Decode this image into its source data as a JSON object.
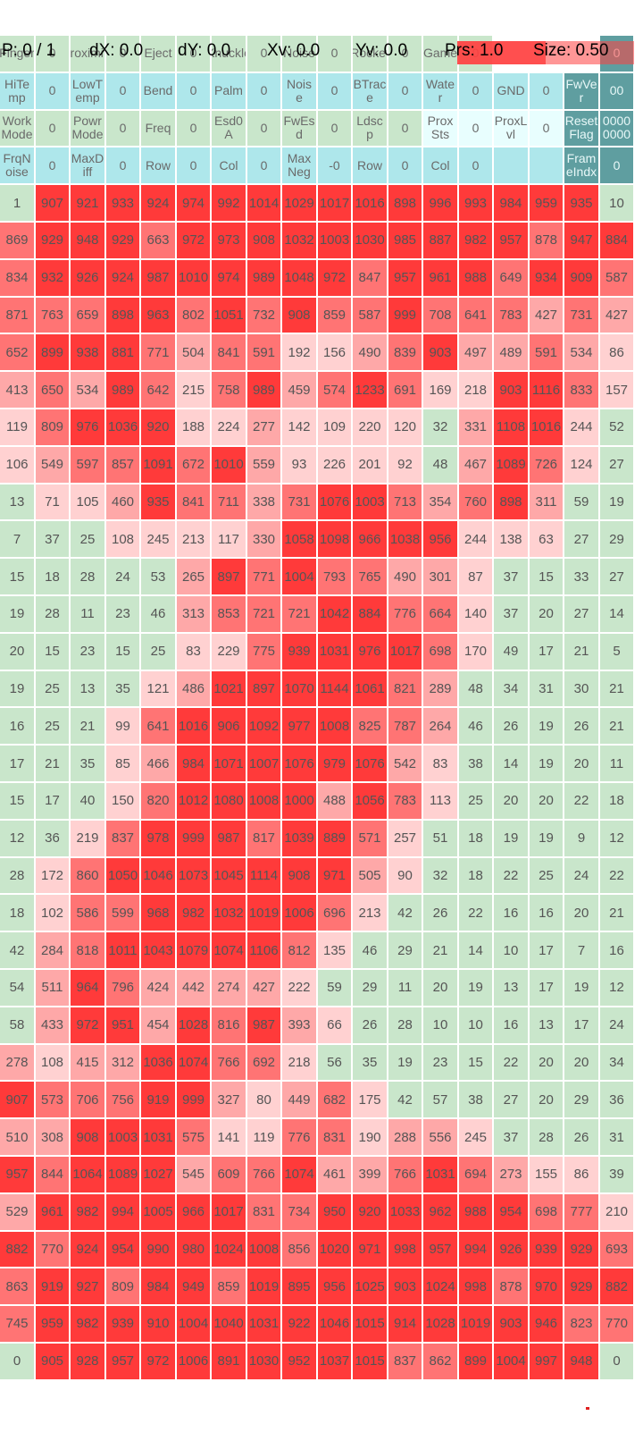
{
  "status": {
    "p": "P: 0 / 1",
    "dx": "dX: 0.0",
    "dy": "dY: 0.0",
    "xv": "Xv: 0.0",
    "yv": "Yv: 0.0",
    "prs": "Prs: 1.0",
    "size": "Size: 0.50"
  },
  "legend": {
    "low": "#c9e6cb",
    "cyan": "#aee7eb",
    "teal": "#5f9ea0",
    "pale": "#e8fefe",
    "light_red": "#ffd1d1",
    "pink": "#fea8a8",
    "mid_red": "#ff7474",
    "red": "#ff3a3a"
  },
  "header_rows": [
    [
      [
        "Finger",
        "g"
      ],
      [
        "0",
        "g"
      ],
      [
        "Proximity",
        "g"
      ],
      [
        "0",
        "g"
      ],
      [
        "Eject",
        "g"
      ],
      [
        "0",
        "g"
      ],
      [
        "Knuckle",
        "g"
      ],
      [
        "0",
        "g"
      ],
      [
        "Noise",
        "g"
      ],
      [
        "0",
        "g"
      ],
      [
        "Rocket",
        "g"
      ],
      [
        "0",
        "g"
      ],
      [
        "Game",
        "g"
      ],
      [
        "0",
        "g"
      ],
      [
        "",
        ""
      ],
      [
        "",
        ""
      ],
      [
        "",
        ""
      ],
      [
        "0",
        "t"
      ]
    ],
    [
      [
        "HiTe\nmp",
        "c"
      ],
      [
        "0",
        "c"
      ],
      [
        "LowT\nemp",
        "c"
      ],
      [
        "0",
        "c"
      ],
      [
        "Bend",
        "c"
      ],
      [
        "0",
        "c"
      ],
      [
        "Palm",
        "c"
      ],
      [
        "0",
        "c"
      ],
      [
        "Nois\ne",
        "c"
      ],
      [
        "0",
        "c"
      ],
      [
        "BTrac\ne",
        "c"
      ],
      [
        "0",
        "c"
      ],
      [
        "Wate\nr",
        "c"
      ],
      [
        "0",
        "c"
      ],
      [
        "GND",
        "c"
      ],
      [
        "0",
        "c"
      ],
      [
        "FwVe\nr",
        "t"
      ],
      [
        "00",
        "t"
      ]
    ],
    [
      [
        "Work\nMode",
        "g"
      ],
      [
        "0",
        "g"
      ],
      [
        "Powr\nMode",
        "g"
      ],
      [
        "0",
        "g"
      ],
      [
        "Freq",
        "g"
      ],
      [
        "0",
        "g"
      ],
      [
        "Esd0\nA",
        "g"
      ],
      [
        "0",
        "g"
      ],
      [
        "FwEs\nd",
        "g"
      ],
      [
        "0",
        "g"
      ],
      [
        "Ldsc\np",
        "g"
      ],
      [
        "0",
        "g"
      ],
      [
        "Prox\nSts",
        "w"
      ],
      [
        "0",
        "w"
      ],
      [
        "ProxL\nvl",
        "w"
      ],
      [
        "0",
        "w"
      ],
      [
        "Reset\nFlag",
        "t"
      ],
      [
        "0000\n0000",
        "t"
      ]
    ],
    [
      [
        "FrqN\noise",
        "c"
      ],
      [
        "0",
        "c"
      ],
      [
        "MaxD\niff",
        "c"
      ],
      [
        "0",
        "c"
      ],
      [
        "Row",
        "c"
      ],
      [
        "0",
        "c"
      ],
      [
        "Col",
        "c"
      ],
      [
        "0",
        "c"
      ],
      [
        "Max\nNeg",
        "c"
      ],
      [
        "-0",
        "c"
      ],
      [
        "Row",
        "c"
      ],
      [
        "0",
        "c"
      ],
      [
        "Col",
        "c"
      ],
      [
        "0",
        "c"
      ],
      [
        "",
        "c"
      ],
      [
        "",
        "c"
      ],
      [
        "Fram\neIndx",
        "t"
      ],
      [
        "0",
        "t"
      ]
    ]
  ],
  "matrix": [
    [
      1,
      907,
      921,
      933,
      924,
      974,
      992,
      1014,
      1029,
      1017,
      1016,
      898,
      996,
      993,
      984,
      959,
      935,
      10
    ],
    [
      869,
      929,
      948,
      929,
      663,
      972,
      973,
      908,
      1032,
      1003,
      1030,
      985,
      887,
      982,
      957,
      878,
      947,
      884
    ],
    [
      834,
      932,
      926,
      924,
      987,
      1010,
      974,
      989,
      1048,
      972,
      847,
      957,
      961,
      988,
      649,
      934,
      909,
      587
    ],
    [
      871,
      763,
      659,
      898,
      963,
      802,
      1051,
      732,
      908,
      859,
      587,
      999,
      708,
      641,
      783,
      427,
      731,
      427
    ],
    [
      652,
      899,
      938,
      881,
      771,
      504,
      841,
      591,
      192,
      156,
      490,
      839,
      903,
      497,
      489,
      591,
      534,
      86
    ],
    [
      413,
      650,
      534,
      989,
      642,
      215,
      758,
      989,
      459,
      574,
      1233,
      691,
      169,
      218,
      903,
      1116,
      833,
      157
    ],
    [
      119,
      809,
      976,
      1036,
      920,
      188,
      224,
      277,
      142,
      109,
      220,
      120,
      32,
      331,
      1108,
      1016,
      244,
      52
    ],
    [
      106,
      549,
      597,
      857,
      1091,
      672,
      1010,
      559,
      93,
      226,
      201,
      92,
      48,
      467,
      1089,
      726,
      124,
      27
    ],
    [
      13,
      71,
      105,
      460,
      935,
      841,
      711,
      338,
      731,
      1076,
      1003,
      713,
      354,
      760,
      898,
      311,
      59,
      19
    ],
    [
      7,
      37,
      25,
      108,
      245,
      213,
      117,
      330,
      1058,
      1098,
      966,
      1038,
      956,
      244,
      138,
      63,
      27,
      29
    ],
    [
      15,
      18,
      28,
      24,
      53,
      265,
      897,
      771,
      1004,
      793,
      765,
      490,
      301,
      87,
      37,
      15,
      33,
      27
    ],
    [
      19,
      28,
      11,
      23,
      46,
      313,
      853,
      721,
      721,
      1042,
      884,
      776,
      664,
      140,
      37,
      20,
      27,
      14
    ],
    [
      20,
      15,
      23,
      15,
      25,
      83,
      229,
      775,
      939,
      1031,
      976,
      1017,
      698,
      170,
      49,
      17,
      21,
      5
    ],
    [
      19,
      25,
      13,
      35,
      121,
      486,
      1021,
      897,
      1070,
      1144,
      1061,
      821,
      289,
      48,
      34,
      31,
      30,
      21
    ],
    [
      16,
      25,
      21,
      99,
      641,
      1016,
      906,
      1092,
      977,
      1008,
      825,
      787,
      264,
      46,
      26,
      19,
      26,
      21
    ],
    [
      17,
      21,
      35,
      85,
      466,
      984,
      1071,
      1007,
      1076,
      979,
      1076,
      542,
      83,
      38,
      14,
      19,
      20,
      11
    ],
    [
      15,
      17,
      40,
      150,
      820,
      1012,
      1080,
      1008,
      1000,
      488,
      1056,
      783,
      113,
      25,
      20,
      20,
      22,
      18
    ],
    [
      12,
      36,
      219,
      837,
      978,
      999,
      987,
      817,
      1039,
      889,
      571,
      257,
      51,
      18,
      19,
      19,
      9,
      12
    ],
    [
      28,
      172,
      860,
      1050,
      1046,
      1073,
      1045,
      1114,
      908,
      971,
      505,
      90,
      32,
      18,
      22,
      25,
      24,
      22
    ],
    [
      18,
      102,
      586,
      599,
      968,
      982,
      1032,
      1019,
      1006,
      696,
      213,
      42,
      26,
      22,
      16,
      16,
      20,
      21
    ],
    [
      42,
      284,
      818,
      1011,
      1043,
      1079,
      1074,
      1106,
      812,
      135,
      46,
      29,
      21,
      14,
      10,
      17,
      7,
      16
    ],
    [
      54,
      511,
      964,
      796,
      424,
      442,
      274,
      427,
      222,
      59,
      29,
      11,
      20,
      19,
      13,
      17,
      19,
      12
    ],
    [
      58,
      433,
      972,
      951,
      454,
      1028,
      816,
      987,
      393,
      66,
      26,
      28,
      10,
      10,
      16,
      13,
      17,
      24
    ],
    [
      278,
      108,
      415,
      312,
      1036,
      1074,
      766,
      692,
      218,
      56,
      35,
      19,
      23,
      15,
      22,
      20,
      20,
      34
    ],
    [
      907,
      573,
      706,
      756,
      919,
      999,
      327,
      80,
      449,
      682,
      175,
      42,
      57,
      38,
      27,
      20,
      29,
      36
    ],
    [
      510,
      308,
      908,
      1003,
      1031,
      575,
      141,
      119,
      776,
      831,
      190,
      288,
      556,
      245,
      37,
      28,
      26,
      31
    ],
    [
      957,
      844,
      1064,
      1089,
      1027,
      545,
      609,
      766,
      1074,
      461,
      399,
      766,
      1031,
      694,
      273,
      155,
      86,
      39
    ],
    [
      529,
      961,
      982,
      994,
      1005,
      966,
      1017,
      831,
      734,
      950,
      920,
      1033,
      962,
      988,
      954,
      698,
      777,
      210
    ],
    [
      882,
      770,
      924,
      954,
      990,
      980,
      1024,
      1008,
      856,
      1020,
      971,
      998,
      957,
      994,
      926,
      939,
      929,
      693
    ],
    [
      863,
      919,
      927,
      809,
      984,
      949,
      859,
      1019,
      895,
      956,
      1025,
      903,
      1024,
      998,
      878,
      970,
      929,
      882
    ],
    [
      745,
      959,
      982,
      939,
      910,
      1004,
      1040,
      1031,
      922,
      1046,
      1015,
      914,
      1028,
      1019,
      903,
      946,
      823,
      770
    ],
    [
      0,
      905,
      928,
      957,
      972,
      1006,
      891,
      1030,
      952,
      1037,
      1015,
      837,
      862,
      899,
      1004,
      997,
      948,
      0
    ]
  ]
}
